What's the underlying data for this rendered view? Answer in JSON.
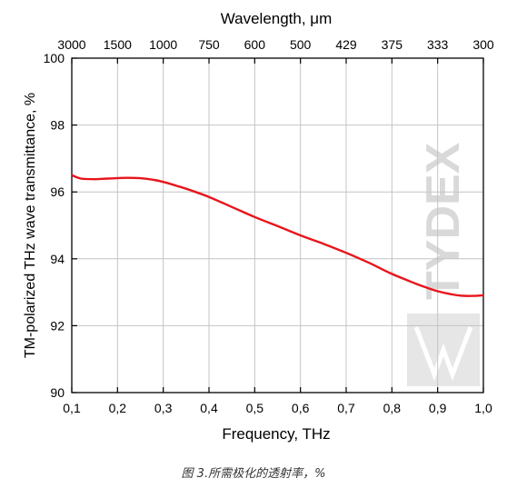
{
  "chart_data": {
    "type": "line",
    "title": "",
    "xlabel": "Frequency, THz",
    "ylabel": "TM-polarized THz wave transmittance, %",
    "top_axis_label": "Wavelength, μm",
    "xlim": [
      0.1,
      1.0
    ],
    "ylim": [
      90,
      100
    ],
    "x_ticks": [
      "0,1",
      "0,2",
      "0,3",
      "0,4",
      "0,5",
      "0,6",
      "0,7",
      "0,8",
      "0,9",
      "1,0"
    ],
    "y_ticks": [
      "90",
      "92",
      "94",
      "96",
      "98",
      "100"
    ],
    "top_ticks": [
      "3000",
      "1500",
      "1000",
      "750",
      "600",
      "500",
      "429",
      "375",
      "333",
      "300"
    ],
    "grid": true,
    "line_color": "#e8151b",
    "series": [
      {
        "x": [
          0.1,
          0.12,
          0.15,
          0.18,
          0.22,
          0.25,
          0.28,
          0.3,
          0.33,
          0.36,
          0.4,
          0.45,
          0.5,
          0.55,
          0.6,
          0.65,
          0.7,
          0.75,
          0.8,
          0.85,
          0.88,
          0.9,
          0.93,
          0.95,
          0.98,
          1.0
        ],
        "y": [
          96.5,
          96.4,
          96.38,
          96.4,
          96.42,
          96.41,
          96.36,
          96.3,
          96.18,
          96.05,
          95.85,
          95.55,
          95.25,
          94.98,
          94.7,
          94.45,
          94.18,
          93.88,
          93.55,
          93.27,
          93.12,
          93.03,
          92.94,
          92.9,
          92.89,
          92.91
        ]
      }
    ]
  },
  "watermark": {
    "text": "TYDEX"
  },
  "caption": "图 3.所需极化的透射率，%"
}
